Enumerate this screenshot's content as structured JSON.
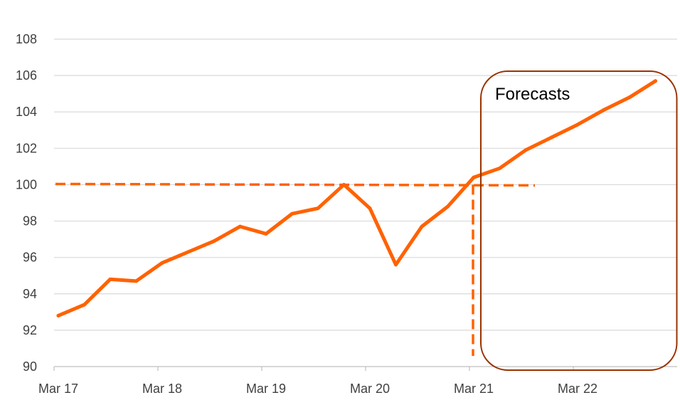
{
  "chart_data": {
    "type": "line",
    "title": "",
    "xlabel": "",
    "ylabel": "",
    "ylim": [
      90,
      108
    ],
    "yticks": [
      90,
      92,
      94,
      96,
      98,
      100,
      102,
      104,
      106,
      108
    ],
    "xtick_labels": [
      "Mar 17",
      "Mar 18",
      "Mar 19",
      "Mar 20",
      "Mar 21",
      "Mar 22"
    ],
    "grid": "horizontal",
    "x": [
      "Mar 17",
      "Jun 17",
      "Sep 17",
      "Dec 17",
      "Mar 18",
      "Jun 18",
      "Sep 18",
      "Dec 18",
      "Mar 19",
      "Jun 19",
      "Sep 19",
      "Dec 19",
      "Mar 20",
      "Jun 20",
      "Sep 20",
      "Dec 20",
      "Mar 21",
      "Jun 21",
      "Sep 21",
      "Dec 21",
      "Mar 22",
      "Jun 22",
      "Sep 22",
      "Dec 22"
    ],
    "series": [
      {
        "values": [
          92.8,
          93.4,
          94.8,
          94.7,
          95.7,
          96.3,
          96.9,
          97.7,
          97.3,
          98.4,
          98.7,
          100.0,
          98.7,
          95.6,
          97.7,
          98.8,
          100.4,
          100.9,
          101.9,
          102.6,
          103.3,
          104.1,
          104.8,
          105.7
        ],
        "color": "#ff6200"
      }
    ],
    "reference_lines": [
      {
        "orientation": "horizontal",
        "y": 100,
        "style": "dashed",
        "color": "#ff6200"
      },
      {
        "orientation": "vertical",
        "x": "Mar 21",
        "style": "dashed",
        "color": "#ff6200"
      }
    ],
    "annotations": [
      {
        "text": "Forecasts",
        "box_color": "#993300",
        "box_from": "Mar 21",
        "box_to": "Dec 22"
      }
    ]
  }
}
